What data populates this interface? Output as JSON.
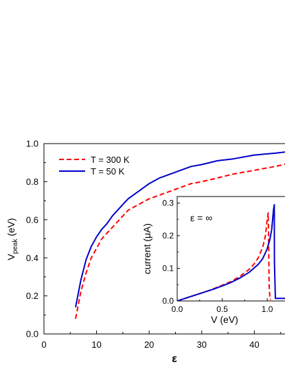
{
  "chart_data": [
    {
      "type": "line",
      "role": "main",
      "xlabel": "ε",
      "ylabel_main": "V",
      "ylabel_sub": "peak",
      "ylabel_unit": " (eV)",
      "xlim": [
        0,
        47
      ],
      "ylim": [
        0,
        1.0
      ],
      "xticks": [
        0,
        10,
        20,
        30,
        40
      ],
      "xtick_labels": [
        "0",
        "10",
        "20",
        "30",
        "40"
      ],
      "yticks": [
        0.0,
        0.2,
        0.4,
        0.6,
        0.8,
        1.0
      ],
      "ytick_labels": [
        "0.0",
        "0.2",
        "0.4",
        "0.6",
        "0.8",
        "1.0"
      ],
      "legend_position": "top-left",
      "series": [
        {
          "name": "T = 300 K",
          "color": "#ff0000",
          "style": "dashed",
          "x": [
            6,
            7,
            8,
            9,
            10,
            11,
            12,
            13,
            14,
            15,
            16,
            18,
            20,
            22,
            25,
            28,
            30,
            33,
            36,
            40,
            44,
            47
          ],
          "y": [
            0.08,
            0.22,
            0.32,
            0.4,
            0.45,
            0.5,
            0.53,
            0.56,
            0.59,
            0.62,
            0.65,
            0.68,
            0.71,
            0.73,
            0.76,
            0.79,
            0.8,
            0.82,
            0.84,
            0.86,
            0.88,
            0.9
          ]
        },
        {
          "name": "T = 50 K",
          "color": "#0000cc",
          "style": "solid",
          "x": [
            6,
            7,
            8,
            9,
            10,
            11,
            12,
            13,
            14,
            15,
            16,
            18,
            20,
            22,
            25,
            28,
            30,
            33,
            36,
            40,
            44,
            47
          ],
          "y": [
            0.14,
            0.28,
            0.39,
            0.46,
            0.51,
            0.55,
            0.58,
            0.62,
            0.65,
            0.68,
            0.71,
            0.75,
            0.79,
            0.82,
            0.85,
            0.88,
            0.89,
            0.91,
            0.92,
            0.94,
            0.95,
            0.96
          ]
        }
      ]
    },
    {
      "type": "line",
      "role": "inset",
      "annotation": "ε = ∞",
      "xlabel": "V (eV)",
      "ylabel_main": "current (",
      "ylabel_mu": "μ",
      "ylabel_end": "A)",
      "xlim": [
        0,
        1.22
      ],
      "ylim": [
        0,
        0.32
      ],
      "xticks": [
        0.0,
        0.5,
        1.0
      ],
      "xtick_labels": [
        "0.0",
        "0.5",
        "1.0"
      ],
      "yticks": [
        0.0,
        0.1,
        0.2,
        0.3
      ],
      "ytick_labels": [
        "0.0",
        "0.1",
        "0.2",
        "0.3"
      ],
      "series": [
        {
          "name": "T = 300 K",
          "color": "#ff0000",
          "style": "dashed",
          "x": [
            0.0,
            0.1,
            0.2,
            0.3,
            0.4,
            0.5,
            0.6,
            0.7,
            0.8,
            0.85,
            0.9,
            0.95,
            0.98,
            1.0,
            1.01,
            1.015,
            1.02,
            1.03,
            1.04
          ],
          "y": [
            0.0,
            0.009,
            0.018,
            0.027,
            0.037,
            0.048,
            0.06,
            0.076,
            0.097,
            0.112,
            0.132,
            0.165,
            0.2,
            0.25,
            0.27,
            0.2,
            0.05,
            0.005,
            0.005
          ]
        },
        {
          "name": "T = 50 K",
          "color": "#0000cc",
          "style": "solid",
          "x": [
            0.0,
            0.1,
            0.2,
            0.3,
            0.4,
            0.5,
            0.6,
            0.7,
            0.8,
            0.9,
            0.95,
            1.0,
            1.03,
            1.05,
            1.07,
            1.078,
            1.08,
            1.09,
            1.1,
            1.15,
            1.22
          ],
          "y": [
            0.0,
            0.009,
            0.018,
            0.027,
            0.036,
            0.046,
            0.057,
            0.071,
            0.088,
            0.112,
            0.13,
            0.16,
            0.19,
            0.22,
            0.28,
            0.295,
            0.12,
            0.008,
            0.008,
            0.008,
            0.008
          ]
        }
      ]
    }
  ]
}
